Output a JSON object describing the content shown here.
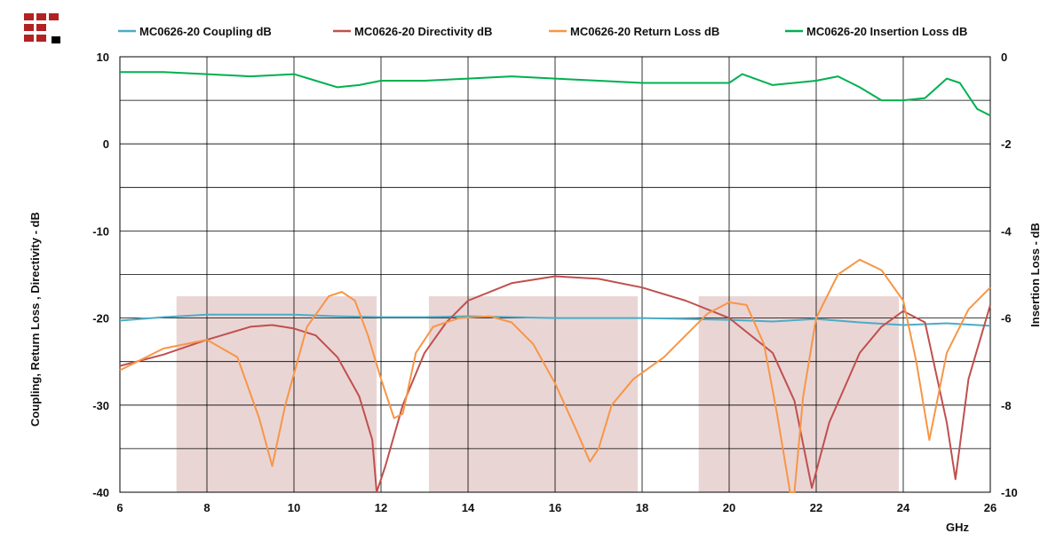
{
  "colors": {
    "coupling": "#4bacc6",
    "directivity": "#c0504d",
    "return_loss": "#f79646",
    "insertion_loss": "#00b050",
    "band_fill": "#ead5d5",
    "grid": "#000000",
    "logo_red": "#b22222",
    "logo_black": "#000000"
  },
  "logo": {
    "icon": "company-logo-icon"
  },
  "chart_data": {
    "type": "line",
    "xlabel": "GHz",
    "ylabel_left": "Coupling, Return Loss , Directivity - dB",
    "ylabel_right": "Insertion Loss - dB",
    "xlim": [
      6,
      26
    ],
    "ylim_left": [
      -40,
      10
    ],
    "ylim_right": [
      -10,
      0
    ],
    "x_ticks": [
      "6",
      "8",
      "10",
      "12",
      "14",
      "16",
      "18",
      "20",
      "22",
      "24",
      "26"
    ],
    "y_left_ticks": [
      "10",
      "0",
      "-10",
      "-20",
      "-30",
      "-40"
    ],
    "y_right_ticks": [
      "0",
      "-2",
      "-4",
      "-6",
      "-8",
      "-10"
    ],
    "grid": true,
    "legend_position": "top",
    "shaded_bands": [
      [
        7.3,
        11.9
      ],
      [
        13.1,
        17.9
      ],
      [
        19.3,
        23.9
      ]
    ],
    "band_top": -17.5,
    "series": [
      {
        "name": "MC0626-20 Coupling dB",
        "axis": "left",
        "x": [
          6,
          7,
          8,
          9,
          10,
          11,
          12,
          13,
          14,
          15,
          16,
          17,
          18,
          19,
          20,
          21,
          22,
          23,
          24,
          25,
          26
        ],
        "y": [
          -20.3,
          -19.9,
          -19.6,
          -19.6,
          -19.6,
          -19.8,
          -19.9,
          -19.9,
          -19.8,
          -19.9,
          -20.0,
          -20.0,
          -20.0,
          -20.1,
          -20.2,
          -20.4,
          -20.1,
          -20.5,
          -20.8,
          -20.6,
          -20.9
        ]
      },
      {
        "name": "MC0626-20 Directivity dB",
        "axis": "left",
        "x": [
          6,
          7,
          8,
          9,
          9.5,
          10,
          10.5,
          11,
          11.5,
          11.8,
          11.9,
          12.1,
          12.5,
          13,
          13.5,
          14,
          15,
          16,
          17,
          18,
          19,
          20,
          21,
          21.5,
          21.9,
          22.3,
          23,
          23.5,
          24,
          24.5,
          25,
          25.2,
          25.5,
          26
        ],
        "y": [
          -25.5,
          -24.2,
          -22.5,
          -21.0,
          -20.8,
          -21.2,
          -22.0,
          -24.5,
          -29.0,
          -34.0,
          -40.0,
          -37.0,
          -30.0,
          -24.0,
          -20.5,
          -18.0,
          -16.0,
          -15.2,
          -15.5,
          -16.5,
          -18.0,
          -20.0,
          -24.0,
          -29.5,
          -39.5,
          -32.0,
          -24.0,
          -21.0,
          -19.2,
          -20.5,
          -32.0,
          -38.5,
          -27.0,
          -18.5
        ]
      },
      {
        "name": "MC0626-20 Return Loss dB",
        "axis": "left",
        "x": [
          6,
          7,
          8,
          8.7,
          9.2,
          9.5,
          9.8,
          10.3,
          10.8,
          11.1,
          11.4,
          11.7,
          12.0,
          12.3,
          12.5,
          12.8,
          13.2,
          13.8,
          14.5,
          15.0,
          15.5,
          16.0,
          16.5,
          16.8,
          17.0,
          17.3,
          17.8,
          18.5,
          19.0,
          19.5,
          20.0,
          20.4,
          20.8,
          21.1,
          21.4,
          21.5,
          21.7,
          22.0,
          22.5,
          23.0,
          23.5,
          24.0,
          24.3,
          24.6,
          25.0,
          25.5,
          26
        ],
        "y": [
          -26.0,
          -23.5,
          -22.5,
          -24.5,
          -31.5,
          -37.0,
          -30.0,
          -21.0,
          -17.5,
          -17.0,
          -18.0,
          -22.0,
          -27.0,
          -31.5,
          -31.0,
          -24.0,
          -21.0,
          -20.0,
          -19.8,
          -20.5,
          -23.0,
          -27.5,
          -33.0,
          -36.5,
          -35.0,
          -30.0,
          -27.0,
          -24.5,
          -22.0,
          -19.5,
          -18.2,
          -18.5,
          -23.0,
          -31.0,
          -40.0,
          -40.0,
          -29.0,
          -20.0,
          -15.0,
          -13.3,
          -14.5,
          -18.0,
          -25.0,
          -34.0,
          -24.0,
          -19.0,
          -16.5
        ]
      },
      {
        "name": "MC0626-20 Insertion Loss dB",
        "axis": "right",
        "x": [
          6,
          7,
          8,
          9,
          10,
          10.5,
          11,
          11.5,
          12,
          13,
          14,
          15,
          16,
          17,
          18,
          19,
          20,
          20.3,
          21,
          22,
          22.5,
          23,
          23.5,
          24,
          24.5,
          25,
          25.3,
          25.7,
          26
        ],
        "y": [
          -0.35,
          -0.35,
          -0.4,
          -0.45,
          -0.4,
          -0.55,
          -0.7,
          -0.65,
          -0.55,
          -0.55,
          -0.5,
          -0.45,
          -0.5,
          -0.55,
          -0.6,
          -0.6,
          -0.6,
          -0.4,
          -0.65,
          -0.55,
          -0.45,
          -0.7,
          -1.0,
          -1.0,
          -0.95,
          -0.5,
          -0.6,
          -1.2,
          -1.35
        ]
      }
    ]
  }
}
